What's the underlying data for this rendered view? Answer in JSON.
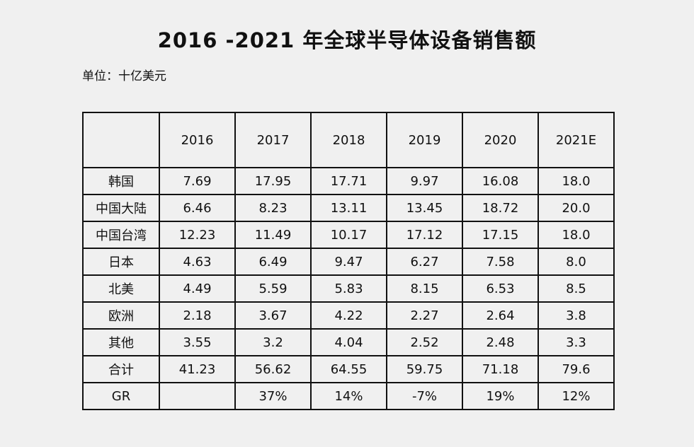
{
  "title": "2016 -2021 年全球半导体设备销售额",
  "unit": "单位：十亿美元",
  "table": {
    "header": [
      "",
      "2016",
      "2017",
      "2018",
      "2019",
      "2020",
      "2021E"
    ],
    "rows": [
      [
        "韩国",
        "7.69",
        "17.95",
        "17.71",
        "9.97",
        "16.08",
        "18.0"
      ],
      [
        "中国大陆",
        "6.46",
        "8.23",
        "13.11",
        "13.45",
        "18.72",
        "20.0"
      ],
      [
        "中国台湾",
        "12.23",
        "11.49",
        "10.17",
        "17.12",
        "17.15",
        "18.0"
      ],
      [
        "日本",
        "4.63",
        "6.49",
        "9.47",
        "6.27",
        "7.58",
        "8.0"
      ],
      [
        "北美",
        "4.49",
        "5.59",
        "5.83",
        "8.15",
        "6.53",
        "8.5"
      ],
      [
        "欧洲",
        "2.18",
        "3.67",
        "4.22",
        "2.27",
        "2.64",
        "3.8"
      ],
      [
        "其他",
        "3.55",
        "3.2",
        "4.04",
        "2.52",
        "2.48",
        "3.3"
      ],
      [
        "合计",
        "41.23",
        "56.62",
        "64.55",
        "59.75",
        "71.18",
        "79.6"
      ],
      [
        "GR",
        "",
        "37%",
        "14%",
        "-7%",
        "19%",
        "12%"
      ]
    ]
  }
}
